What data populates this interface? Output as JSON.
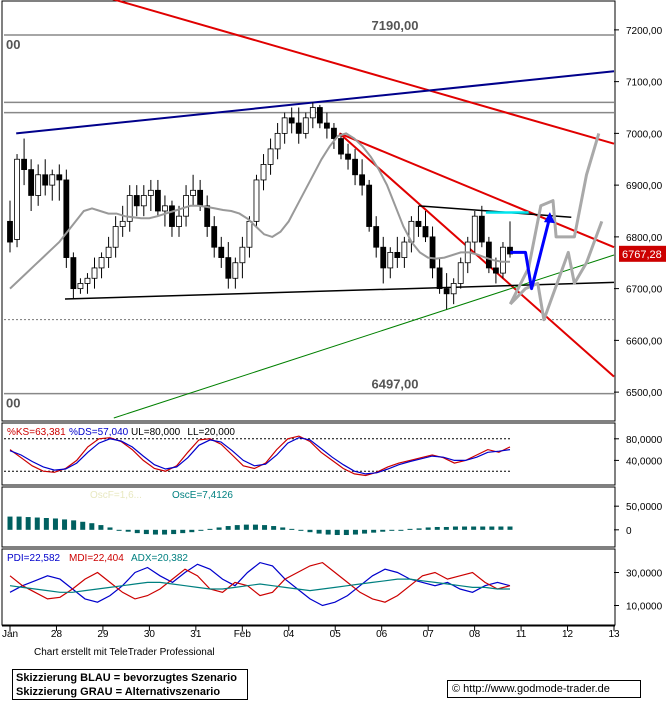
{
  "credit_text": "Chart erstellt mit TeleTrader Professional",
  "legend_lines": [
    "Skizzierung BLAU = bevorzugtes Szenario",
    "Skizzierung GRAU = Alternativszenario"
  ],
  "copyright_symbol": "©",
  "url": "http://www.godmode-trader.de",
  "colors": {
    "trend_red": "#e00000",
    "trend_blue": "#00008b",
    "support_green": "#008000",
    "scenario_blue": "#0000ff",
    "scenario_gray": "#a9a9a9",
    "price_box": "#cc0000"
  },
  "chart_data": [
    {
      "type": "candlestick",
      "ylim": [
        6450,
        7250
      ],
      "yticks": [
        "7200,00",
        "7100,00",
        "7000,00",
        "6900,00",
        "6800,00",
        "6700,00",
        "6600,00",
        "6500,00"
      ],
      "ytick_values": [
        7200,
        7100,
        7000,
        6900,
        6800,
        6700,
        6600,
        6500
      ],
      "x_labels": [
        "Jan",
        "28",
        "29",
        "30",
        "31",
        "Feb",
        "04",
        "05",
        "06",
        "07",
        "08",
        "11",
        "12",
        "13"
      ],
      "last_price_label": "6767,28",
      "last_price": 6767.28,
      "level_labels": [
        {
          "text": "7190,00",
          "value": 7190
        },
        {
          "text": "6497,00",
          "value": 6497
        }
      ],
      "left_edge_labels": [
        "00",
        "00"
      ],
      "candles": [
        [
          6830,
          6870,
          6770,
          6790
        ],
        [
          6795,
          6960,
          6780,
          6950
        ],
        [
          6950,
          6990,
          6900,
          6930
        ],
        [
          6930,
          6950,
          6850,
          6880
        ],
        [
          6880,
          6940,
          6860,
          6920
        ],
        [
          6920,
          6950,
          6880,
          6900
        ],
        [
          6900,
          6930,
          6870,
          6920
        ],
        [
          6920,
          6940,
          6870,
          6910
        ],
        [
          6910,
          6930,
          6740,
          6760
        ],
        [
          6760,
          6770,
          6680,
          6700
        ],
        [
          6700,
          6720,
          6690,
          6710
        ],
        [
          6710,
          6730,
          6690,
          6720
        ],
        [
          6720,
          6760,
          6700,
          6740
        ],
        [
          6740,
          6770,
          6720,
          6760
        ],
        [
          6760,
          6800,
          6740,
          6780
        ],
        [
          6780,
          6840,
          6760,
          6820
        ],
        [
          6820,
          6860,
          6800,
          6830
        ],
        [
          6830,
          6900,
          6810,
          6880
        ],
        [
          6880,
          6900,
          6840,
          6860
        ],
        [
          6860,
          6900,
          6840,
          6880
        ],
        [
          6880,
          6910,
          6850,
          6890
        ],
        [
          6890,
          6910,
          6840,
          6850
        ],
        [
          6850,
          6880,
          6820,
          6860
        ],
        [
          6860,
          6870,
          6800,
          6820
        ],
        [
          6820,
          6860,
          6800,
          6840
        ],
        [
          6840,
          6900,
          6820,
          6880
        ],
        [
          6880,
          6920,
          6860,
          6890
        ],
        [
          6890,
          6910,
          6850,
          6860
        ],
        [
          6860,
          6880,
          6800,
          6820
        ],
        [
          6820,
          6840,
          6760,
          6780
        ],
        [
          6780,
          6800,
          6740,
          6760
        ],
        [
          6760,
          6790,
          6700,
          6720
        ],
        [
          6720,
          6760,
          6700,
          6750
        ],
        [
          6750,
          6800,
          6720,
          6780
        ],
        [
          6780,
          6840,
          6760,
          6830
        ],
        [
          6830,
          6920,
          6820,
          6910
        ],
        [
          6910,
          6960,
          6890,
          6940
        ],
        [
          6940,
          6990,
          6920,
          6970
        ],
        [
          6970,
          7020,
          6950,
          7000
        ],
        [
          7000,
          7040,
          6980,
          7030
        ],
        [
          7030,
          7050,
          7000,
          7020
        ],
        [
          7020,
          7050,
          6980,
          7000
        ],
        [
          7000,
          7040,
          6990,
          7030
        ],
        [
          7030,
          7060,
          7010,
          7050
        ],
        [
          7050,
          7055,
          7010,
          7020
        ],
        [
          7020,
          7040,
          6990,
          7010
        ],
        [
          7010,
          7020,
          6970,
          6990
        ],
        [
          6990,
          7000,
          6950,
          6960
        ],
        [
          6960,
          6980,
          6930,
          6950
        ],
        [
          6950,
          6970,
          6900,
          6920
        ],
        [
          6920,
          6950,
          6880,
          6900
        ],
        [
          6900,
          6910,
          6810,
          6820
        ],
        [
          6820,
          6840,
          6760,
          6780
        ],
        [
          6780,
          6800,
          6710,
          6740
        ],
        [
          6740,
          6780,
          6720,
          6770
        ],
        [
          6770,
          6800,
          6740,
          6760
        ],
        [
          6760,
          6800,
          6740,
          6790
        ],
        [
          6790,
          6840,
          6770,
          6830
        ],
        [
          6830,
          6860,
          6800,
          6820
        ],
        [
          6820,
          6850,
          6790,
          6800
        ],
        [
          6800,
          6820,
          6720,
          6740
        ],
        [
          6740,
          6760,
          6690,
          6700
        ],
        [
          6700,
          6730,
          6660,
          6690
        ],
        [
          6690,
          6720,
          6670,
          6710
        ],
        [
          6710,
          6760,
          6700,
          6750
        ],
        [
          6750,
          6800,
          6730,
          6790
        ],
        [
          6790,
          6850,
          6770,
          6840
        ],
        [
          6840,
          6860,
          6780,
          6790
        ],
        [
          6790,
          6800,
          6730,
          6740
        ],
        [
          6740,
          6760,
          6710,
          6730
        ],
        [
          6730,
          6790,
          6720,
          6780
        ],
        [
          6780,
          6830,
          6760,
          6767
        ]
      ],
      "sma": [
        6700,
        6715,
        6730,
        6745,
        6760,
        6775,
        6790,
        6810,
        6830,
        6850,
        6855,
        6850,
        6845,
        6845,
        6840,
        6838,
        6836,
        6836,
        6840,
        6845,
        6850,
        6855,
        6860,
        6860,
        6858,
        6855,
        6852,
        6850,
        6845,
        6835,
        6820,
        6805,
        6800,
        6810,
        6830,
        6860,
        6890,
        6920,
        6950,
        6975,
        6995,
        7000,
        6990,
        6975,
        6955,
        6930,
        6900,
        6860,
        6820,
        6790,
        6770,
        6760,
        6758,
        6760,
        6765,
        6770,
        6770,
        6766,
        6760,
        6755,
        6752,
        6752
      ],
      "horizontal_levels": [
        7190,
        7040,
        7060,
        6640,
        6497
      ],
      "trendlines": [
        {
          "name": "red-upper",
          "from": [
            0,
            7320
          ],
          "to": [
            1,
            6980
          ],
          "color": "trend_red"
        },
        {
          "name": "red-middle",
          "from": [
            0.55,
            7000
          ],
          "to": [
            1,
            6780
          ],
          "color": "trend_red"
        },
        {
          "name": "red-lower",
          "from": [
            0.55,
            7000
          ],
          "to": [
            1,
            6530
          ],
          "color": "trend_red"
        },
        {
          "name": "blue-upper",
          "from": [
            0.02,
            7000
          ],
          "to": [
            1,
            7120
          ],
          "color": "trend_blue"
        },
        {
          "name": "black-support",
          "from": [
            0.1,
            6680
          ],
          "to": [
            1,
            6712
          ],
          "color": "#000"
        },
        {
          "name": "black-triangle-top",
          "from": [
            0.68,
            6860
          ],
          "to": [
            0.93,
            6838
          ],
          "color": "#000"
        },
        {
          "name": "green-support",
          "from": [
            0.18,
            6450
          ],
          "to": [
            1,
            6765
          ],
          "color": "support_green"
        }
      ]
    },
    {
      "type": "line",
      "title": "%KS=63,381 %DS=57,040 UL=80,000 LL=20,000",
      "series_labels": [
        {
          "text": "%KS=63,381",
          "color": "#cc0000"
        },
        {
          "text": "%DS=57,040",
          "color": "#0000cc"
        },
        {
          "text": "UL=80,000",
          "color": "#000"
        },
        {
          "text": "LL=20,000",
          "color": "#000"
        }
      ],
      "ylim": [
        0,
        100
      ],
      "yticks": [
        "80,0000",
        "40,0000"
      ],
      "ytick_values": [
        80,
        40
      ],
      "levels": [
        80,
        20
      ],
      "series": [
        {
          "name": "%KS",
          "color": "#cc0000",
          "values": [
            60,
            45,
            30,
            20,
            18,
            25,
            40,
            65,
            80,
            82,
            75,
            60,
            40,
            25,
            20,
            30,
            55,
            78,
            80,
            70,
            50,
            30,
            25,
            35,
            60,
            80,
            85,
            75,
            55,
            40,
            25,
            15,
            12,
            18,
            28,
            35,
            40,
            45,
            50,
            45,
            35,
            40,
            50,
            60,
            55,
            65
          ]
        },
        {
          "name": "%DS",
          "color": "#0000cc",
          "values": [
            58,
            50,
            38,
            28,
            22,
            24,
            35,
            55,
            72,
            80,
            76,
            65,
            48,
            32,
            24,
            28,
            45,
            68,
            78,
            74,
            58,
            40,
            30,
            33,
            50,
            72,
            82,
            78,
            62,
            46,
            32,
            20,
            15,
            17,
            24,
            32,
            38,
            43,
            48,
            46,
            40,
            40,
            46,
            55,
            57,
            60
          ]
        }
      ]
    },
    {
      "type": "bar",
      "title": "OscE=7,4126",
      "label_hidden": "OscF=1,6...",
      "ylim": [
        -30,
        80
      ],
      "yticks": [
        "50,0000",
        "0"
      ],
      "ytick_values": [
        50,
        0
      ],
      "values": [
        28,
        28,
        27,
        26,
        25,
        24,
        22,
        20,
        17,
        14,
        10,
        5,
        0,
        -4,
        -7,
        -9,
        -10,
        -10,
        -9,
        -7,
        -5,
        -2,
        2,
        5,
        8,
        10,
        11,
        11,
        10,
        8,
        5,
        2,
        -2,
        -5,
        -8,
        -10,
        -11,
        -11,
        -10,
        -8,
        -6,
        -4,
        -2,
        0,
        2,
        3,
        5,
        6,
        6,
        7,
        7,
        7,
        7,
        7,
        7,
        7
      ]
    },
    {
      "type": "line",
      "title": "PDI=22,582 MDI=22,404 ADX=20,382",
      "series_labels": [
        {
          "text": "PDI=22,582",
          "color": "#0000cc"
        },
        {
          "text": "MDI=22,404",
          "color": "#cc0000"
        },
        {
          "text": "ADX=20,382",
          "color": "#008080"
        }
      ],
      "ylim": [
        0,
        40
      ],
      "yticks": [
        "30,0000",
        "10,0000"
      ],
      "ytick_values": [
        30,
        10
      ],
      "series": [
        {
          "name": "PDI",
          "color": "#0000cc",
          "values": [
            18,
            22,
            25,
            28,
            26,
            20,
            14,
            12,
            16,
            22,
            30,
            33,
            28,
            24,
            30,
            35,
            32,
            26,
            22,
            30,
            36,
            34,
            26,
            20,
            14,
            10,
            12,
            16,
            22,
            28,
            32,
            30,
            26,
            24,
            22,
            24,
            20,
            18,
            22,
            24,
            22
          ]
        },
        {
          "name": "MDI",
          "color": "#cc0000",
          "values": [
            28,
            22,
            18,
            14,
            15,
            20,
            26,
            30,
            24,
            18,
            14,
            16,
            20,
            26,
            32,
            28,
            20,
            18,
            24,
            22,
            16,
            18,
            26,
            30,
            34,
            36,
            30,
            24,
            18,
            14,
            12,
            16,
            22,
            28,
            30,
            26,
            28,
            30,
            24,
            20,
            22
          ]
        },
        {
          "name": "ADX",
          "color": "#008080",
          "values": [
            22,
            21,
            20,
            19,
            18,
            18,
            19,
            20,
            21,
            22,
            23,
            24,
            24,
            23,
            22,
            21,
            20,
            20,
            21,
            22,
            23,
            22,
            21,
            20,
            19,
            20,
            21,
            22,
            23,
            24,
            25,
            26,
            26,
            25,
            24,
            23,
            22,
            21,
            21,
            20,
            20
          ]
        }
      ]
    }
  ]
}
